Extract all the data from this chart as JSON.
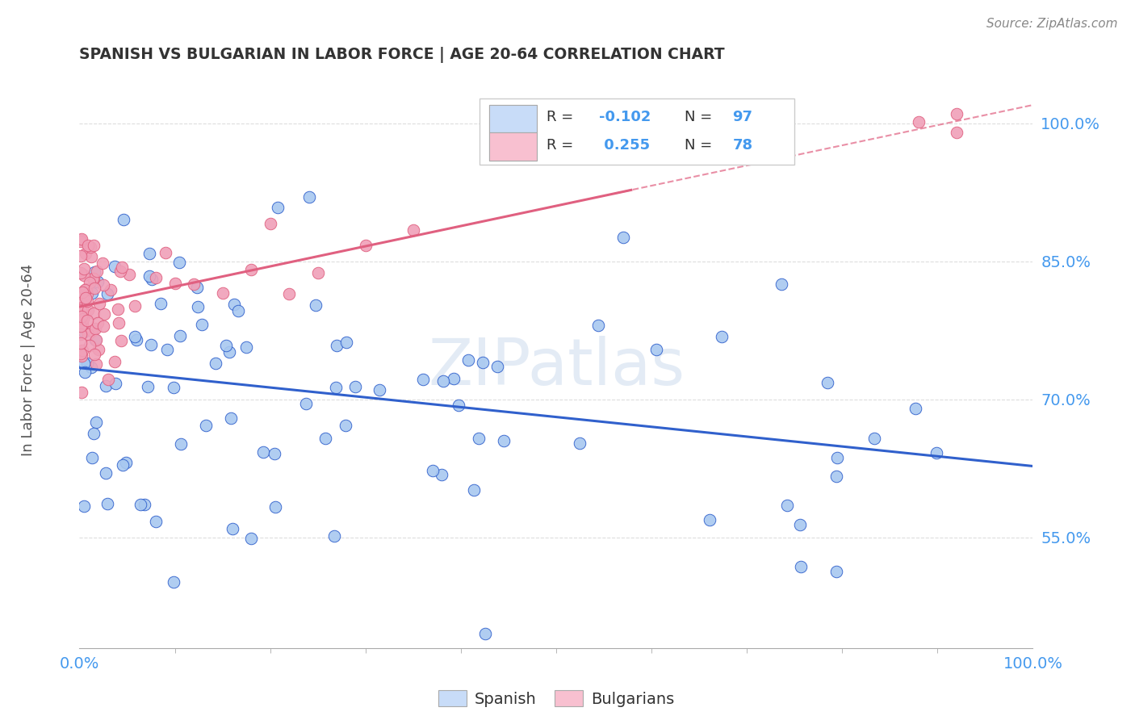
{
  "title": "SPANISH VS BULGARIAN IN LABOR FORCE | AGE 20-64 CORRELATION CHART",
  "source": "Source: ZipAtlas.com",
  "ylabel": "In Labor Force | Age 20-64",
  "xlim": [
    0.0,
    1.0
  ],
  "ylim": [
    0.43,
    1.04
  ],
  "ytick_positions": [
    0.55,
    0.7,
    0.85,
    1.0
  ],
  "ytick_labels": [
    "55.0%",
    "70.0%",
    "85.0%",
    "100.0%"
  ],
  "r_spanish": -0.102,
  "n_spanish": 97,
  "r_bulgarian": 0.255,
  "n_bulgarian": 78,
  "spanish_dot_color": "#A8C8F0",
  "bulgarian_dot_color": "#F0A0B8",
  "spanish_line_color": "#3060CC",
  "bulgarian_line_color": "#E06080",
  "legend_box_spanish_fill": "#C8DCF8",
  "legend_box_bulgarian_fill": "#F8C0D0",
  "watermark_color": "#C8D8EC",
  "background_color": "#FFFFFF",
  "grid_color": "#DDDDDD",
  "tick_color": "#4499EE",
  "title_color": "#333333",
  "source_color": "#888888",
  "ylabel_color": "#555555"
}
